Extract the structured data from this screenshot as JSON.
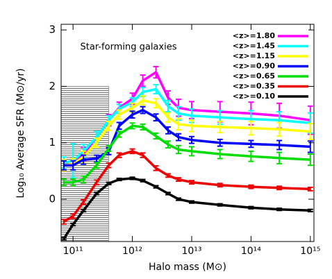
{
  "chart_data": {
    "type": "line",
    "title": "Star-forming galaxies",
    "xlabel": "Halo mass (M⊙)",
    "ylabel": "Log₁₀ Average SFR (M⊙/yr)",
    "log_x": true,
    "xlim": [
      63000000000.0,
      1150000000000000.0
    ],
    "ylim": [
      -0.75,
      3.1
    ],
    "xticks": [
      {
        "value": 100000000000.0,
        "label": "10¹¹"
      },
      {
        "value": 1000000000000.0,
        "label": "10¹²"
      },
      {
        "value": 10000000000000.0,
        "label": "10¹³"
      },
      {
        "value": 100000000000000.0,
        "label": "10¹⁴"
      },
      {
        "value": 1000000000000000.0,
        "label": "10¹⁵"
      }
    ],
    "yticks": [
      0,
      1,
      2,
      3
    ],
    "shade": {
      "x_max": 400000000000.0,
      "y_max": 2,
      "color": "#999999"
    },
    "legend": "upper right",
    "x": [
      70000000000.0,
      100000000000.0,
      150000000000.0,
      250000000000.0,
      400000000000.0,
      600000000000.0,
      1000000000000.0,
      1500000000000.0,
      2500000000000.0,
      4000000000000.0,
      6000000000000.0,
      10000000000000.0,
      30000000000000.0,
      100000000000000.0,
      300000000000000.0,
      1000000000000000.0
    ],
    "series": [
      {
        "name": "<z>=1.80",
        "color": "#ff00ff",
        "values": [
          0.6,
          0.62,
          0.8,
          1.1,
          1.4,
          1.62,
          1.78,
          2.1,
          2.25,
          1.8,
          1.62,
          1.58,
          1.55,
          1.52,
          1.48,
          1.4
        ],
        "errors": [
          0.1,
          0.1,
          0.12,
          0.1,
          0.1,
          0.1,
          0.1,
          0.1,
          0.1,
          0.12,
          0.15,
          0.15,
          0.18,
          0.2,
          0.22,
          0.25
        ]
      },
      {
        "name": "<z>=1.45",
        "color": "#00ffff",
        "values": [
          0.65,
          0.68,
          0.85,
          1.1,
          1.4,
          1.6,
          1.72,
          1.9,
          1.95,
          1.65,
          1.52,
          1.48,
          1.45,
          1.42,
          1.4,
          1.35
        ],
        "errors": [
          0.1,
          0.3,
          0.12,
          0.1,
          0.08,
          0.08,
          0.08,
          0.08,
          0.08,
          0.1,
          0.12,
          0.12,
          0.12,
          0.15,
          0.15,
          0.18
        ]
      },
      {
        "name": "<z>=1.15",
        "color": "#ffff00",
        "values": [
          0.6,
          0.62,
          0.75,
          1.0,
          1.3,
          1.5,
          1.62,
          1.75,
          1.7,
          1.45,
          1.33,
          1.3,
          1.28,
          1.26,
          1.24,
          1.2
        ],
        "errors": [
          0.1,
          0.1,
          0.1,
          0.08,
          0.08,
          0.08,
          0.08,
          0.08,
          0.08,
          0.08,
          0.1,
          0.1,
          0.1,
          0.12,
          0.12,
          0.14
        ]
      },
      {
        "name": "<z>=0.90",
        "color": "#0000ff",
        "values": [
          0.6,
          0.6,
          0.7,
          0.72,
          0.85,
          1.3,
          1.5,
          1.58,
          1.45,
          1.22,
          1.1,
          1.05,
          1.0,
          0.98,
          0.96,
          0.93
        ],
        "errors": [
          0.08,
          0.08,
          0.08,
          0.06,
          0.06,
          0.06,
          0.06,
          0.06,
          0.06,
          0.06,
          0.06,
          0.06,
          0.06,
          0.06,
          0.08,
          0.1
        ]
      },
      {
        "name": "<z>=0.65",
        "color": "#00dd00",
        "values": [
          0.3,
          0.3,
          0.35,
          0.6,
          0.9,
          1.15,
          1.3,
          1.28,
          1.12,
          0.97,
          0.88,
          0.85,
          0.8,
          0.76,
          0.73,
          0.7
        ],
        "errors": [
          0.06,
          0.06,
          0.06,
          0.05,
          0.05,
          0.05,
          0.05,
          0.05,
          0.05,
          0.06,
          0.07,
          0.08,
          0.08,
          0.09,
          0.1,
          0.1
        ]
      },
      {
        "name": "<z>=0.35",
        "color": "#ee0000",
        "values": [
          -0.4,
          -0.3,
          -0.05,
          0.3,
          0.6,
          0.78,
          0.85,
          0.78,
          0.55,
          0.42,
          0.35,
          0.3,
          0.25,
          0.22,
          0.2,
          0.18
        ],
        "errors": [
          0.04,
          0.04,
          0.04,
          0.04,
          0.04,
          0.04,
          0.04,
          0.04,
          0.04,
          0.03,
          0.03,
          0.03,
          0.03,
          0.03,
          0.03,
          0.03
        ]
      },
      {
        "name": "<z>=0.10",
        "color": "#000000",
        "values": [
          -0.7,
          -0.45,
          -0.2,
          0.1,
          0.28,
          0.35,
          0.37,
          0.33,
          0.22,
          0.1,
          0.0,
          -0.05,
          -0.1,
          -0.15,
          -0.18,
          -0.2
        ],
        "errors": [
          0.02,
          0.02,
          0.02,
          0.02,
          0.02,
          0.02,
          0.02,
          0.02,
          0.02,
          0.02,
          0.02,
          0.02,
          0.02,
          0.02,
          0.02,
          0.02
        ]
      }
    ]
  }
}
